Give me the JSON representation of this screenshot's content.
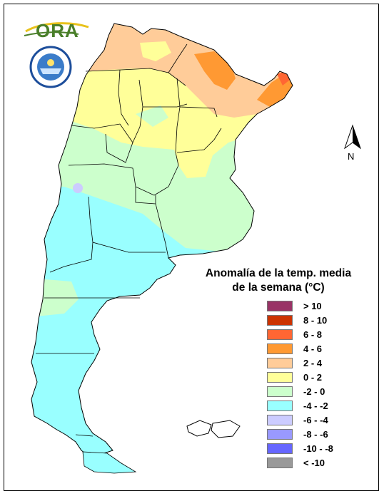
{
  "logo": {
    "text": "ORA"
  },
  "north_label": "N",
  "legend": {
    "title_line1": "Anomalía de la temp. media",
    "title_line2": "de la semana (°C)",
    "items": [
      {
        "label": "> 10",
        "color": "#993366"
      },
      {
        "label": "8 - 10",
        "color": "#cc3300"
      },
      {
        "label": "6 - 8",
        "color": "#ff6633"
      },
      {
        "label": "4 - 6",
        "color": "#ff9933"
      },
      {
        "label": "2 - 4",
        "color": "#ffcc99"
      },
      {
        "label": "0 - 2",
        "color": "#ffff99"
      },
      {
        "label": "-2 - 0",
        "color": "#ccffcc"
      },
      {
        "label": "-4 - -2",
        "color": "#99ffff"
      },
      {
        "label": "-6 - -4",
        "color": "#ccccff"
      },
      {
        "label": "-8 - -6",
        "color": "#9999ff"
      },
      {
        "label": "-10 - -8",
        "color": "#6666ff"
      },
      {
        "label": "< -10",
        "color": "#999999"
      }
    ]
  }
}
